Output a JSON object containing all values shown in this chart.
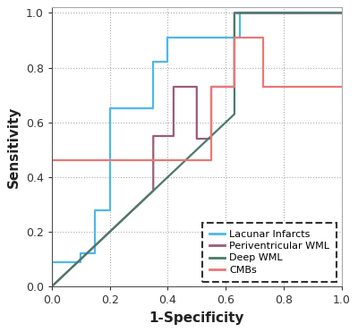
{
  "title": "",
  "xlabel": "1-Specificity",
  "ylabel": "Sensitivity",
  "xlim": [
    0.0,
    1.0
  ],
  "ylim": [
    0.0,
    1.02
  ],
  "xticks": [
    0.0,
    0.2,
    0.4,
    0.6,
    0.8,
    1.0
  ],
  "yticks": [
    0.0,
    0.2,
    0.4,
    0.6,
    0.8,
    1.0
  ],
  "background_color": "#ffffff",
  "lacunar_infarcts": {
    "x": [
      0.0,
      0.0,
      0.1,
      0.1,
      0.15,
      0.15,
      0.2,
      0.2,
      0.35,
      0.35,
      0.4,
      0.4,
      0.65,
      0.65,
      1.0
    ],
    "y": [
      0.0,
      0.09,
      0.09,
      0.12,
      0.12,
      0.28,
      0.28,
      0.65,
      0.65,
      0.82,
      0.82,
      0.91,
      0.91,
      1.0,
      1.0
    ],
    "color": "#4db8e8",
    "lw": 1.6
  },
  "periventricular_wml": {
    "x": [
      0.0,
      0.35,
      0.35,
      0.42,
      0.42,
      0.5,
      0.5,
      0.55,
      0.55,
      0.63,
      0.63,
      1.0
    ],
    "y": [
      0.0,
      0.35,
      0.55,
      0.55,
      0.73,
      0.73,
      0.54,
      0.54,
      0.73,
      0.73,
      1.0,
      1.0
    ],
    "color": "#9b5c7a",
    "lw": 1.6
  },
  "deep_wml": {
    "x": [
      0.0,
      0.63,
      0.63,
      1.0
    ],
    "y": [
      0.0,
      0.63,
      1.0,
      1.0
    ],
    "color": "#4a7a6a",
    "lw": 1.6
  },
  "cmbs": {
    "x": [
      0.0,
      0.0,
      0.15,
      0.15,
      0.55,
      0.55,
      0.63,
      0.63,
      0.73,
      0.73,
      1.0
    ],
    "y": [
      0.0,
      0.46,
      0.46,
      0.46,
      0.46,
      0.73,
      0.73,
      0.91,
      0.91,
      0.73,
      0.73
    ],
    "color": "#e87878",
    "lw": 1.6
  },
  "legend_labels": [
    "Lacunar Infarcts",
    "Periventricular WML",
    "Deep WML",
    "CMBs"
  ],
  "legend_colors": [
    "#4db8e8",
    "#9b5c7a",
    "#4a7a6a",
    "#e87878"
  ]
}
